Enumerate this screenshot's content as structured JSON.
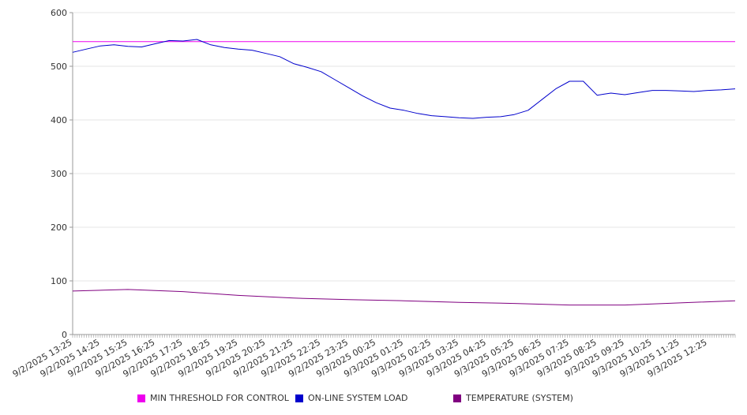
{
  "chart_data": {
    "type": "line",
    "title": "",
    "xlabel": "",
    "ylabel": "",
    "ylim": [
      0,
      600
    ],
    "yticks": [
      0,
      100,
      200,
      300,
      400,
      500,
      600
    ],
    "grid": true,
    "legend_position": "bottom",
    "x_tick_labels": [
      "9/2/2025 13:25",
      "9/2/2025 14:25",
      "9/2/2025 15:25",
      "9/2/2025 16:25",
      "9/2/2025 17:25",
      "9/2/2025 18:25",
      "9/2/2025 19:25",
      "9/2/2025 20:25",
      "9/2/2025 21:25",
      "9/2/2025 22:25",
      "9/2/2025 23:25",
      "9/3/2025 00:25",
      "9/3/2025 01:25",
      "9/3/2025 02:25",
      "9/3/2025 03:25",
      "9/3/2025 04:25",
      "9/3/2025 05:25",
      "9/3/2025 06:25",
      "9/3/2025 07:25",
      "9/3/2025 08:25",
      "9/3/2025 09:25",
      "9/3/2025 10:25",
      "9/3/2025 11:25",
      "9/3/2025 12:25"
    ],
    "series": [
      {
        "name": "MIN THRESHOLD FOR CONTROL",
        "color": "#ee00ee",
        "x": [
          "9/2/2025 13:25",
          "9/3/2025 13:25"
        ],
        "values": [
          546,
          546
        ]
      },
      {
        "name": "ON-LINE SYSTEM LOAD",
        "color": "#0000cc",
        "x": [
          "9/2/2025 13:25",
          "9/2/2025 13:55",
          "9/2/2025 14:25",
          "9/2/2025 14:55",
          "9/2/2025 15:25",
          "9/2/2025 15:55",
          "9/2/2025 16:25",
          "9/2/2025 16:55",
          "9/2/2025 17:25",
          "9/2/2025 17:55",
          "9/2/2025 18:25",
          "9/2/2025 18:55",
          "9/2/2025 19:25",
          "9/2/2025 19:55",
          "9/2/2025 20:25",
          "9/2/2025 20:55",
          "9/2/2025 21:25",
          "9/2/2025 21:55",
          "9/2/2025 22:25",
          "9/2/2025 22:55",
          "9/2/2025 23:25",
          "9/2/2025 23:55",
          "9/3/2025 00:25",
          "9/3/2025 00:55",
          "9/3/2025 01:25",
          "9/3/2025 01:55",
          "9/3/2025 02:25",
          "9/3/2025 02:55",
          "9/3/2025 03:25",
          "9/3/2025 03:55",
          "9/3/2025 04:25",
          "9/3/2025 04:55",
          "9/3/2025 05:25",
          "9/3/2025 05:55",
          "9/3/2025 06:25",
          "9/3/2025 06:55",
          "9/3/2025 07:25",
          "9/3/2025 07:55",
          "9/3/2025 08:25",
          "9/3/2025 08:55",
          "9/3/2025 09:25",
          "9/3/2025 09:55",
          "9/3/2025 10:25",
          "9/3/2025 10:55",
          "9/3/2025 11:25",
          "9/3/2025 11:55",
          "9/3/2025 12:25",
          "9/3/2025 12:55",
          "9/3/2025 13:25"
        ],
        "values": [
          526,
          532,
          538,
          540,
          537,
          536,
          542,
          548,
          547,
          550,
          540,
          535,
          532,
          530,
          524,
          518,
          505,
          498,
          490,
          475,
          460,
          445,
          432,
          422,
          418,
          412,
          408,
          406,
          404,
          403,
          405,
          406,
          410,
          418,
          438,
          458,
          472,
          472,
          446,
          450,
          447,
          451,
          455,
          455,
          454,
          453,
          455,
          456,
          458
        ]
      },
      {
        "name": "TEMPERATURE (SYSTEM)",
        "color": "#800080",
        "x": [
          "9/2/2025 13:25",
          "9/2/2025 15:25",
          "9/2/2025 17:25",
          "9/2/2025 19:25",
          "9/2/2025 21:25",
          "9/2/2025 23:25",
          "9/3/2025 01:25",
          "9/3/2025 03:25",
          "9/3/2025 05:25",
          "9/3/2025 07:25",
          "9/3/2025 09:25",
          "9/3/2025 11:25",
          "9/3/2025 13:25"
        ],
        "values": [
          81,
          84,
          80,
          73,
          68,
          65,
          63,
          60,
          58,
          55,
          55,
          59,
          63
        ]
      }
    ]
  }
}
